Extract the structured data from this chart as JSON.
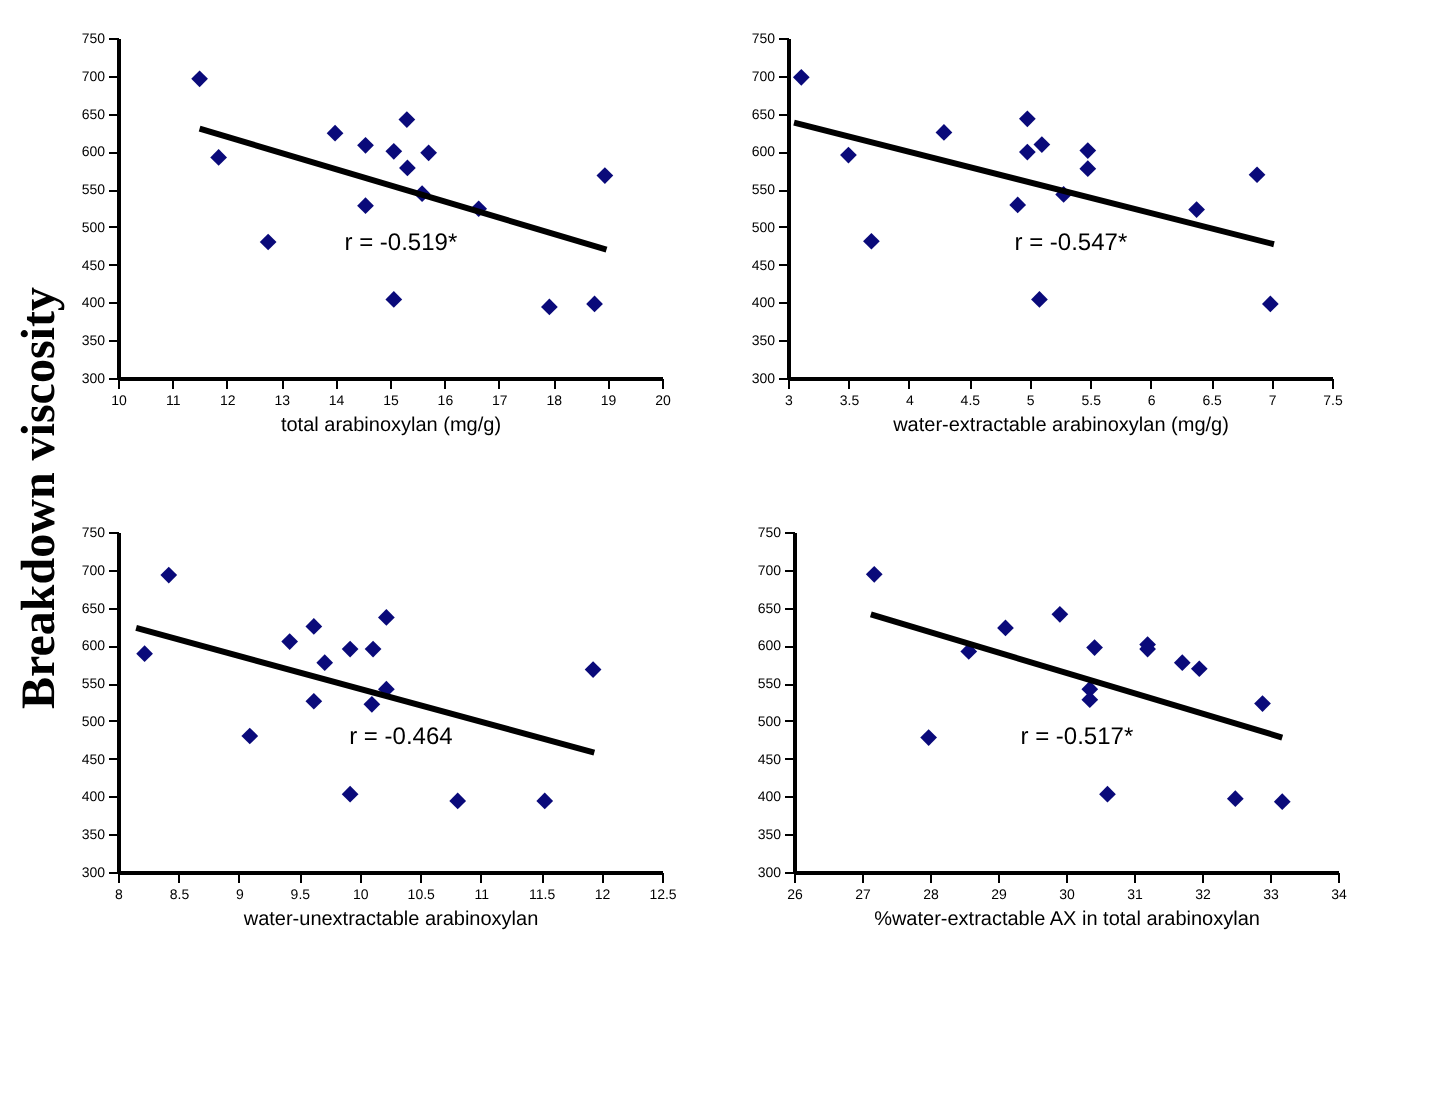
{
  "chart_data": [
    {
      "type": "scatter",
      "ylabel": "Breakdown viscosity",
      "xlabel": "total arabinoxylan (mg/g)",
      "xlim": [
        10,
        20
      ],
      "xticks": [
        10,
        11,
        12,
        13,
        14,
        15,
        16,
        17,
        18,
        19,
        20
      ],
      "ylim": [
        300,
        750
      ],
      "yticks": [
        300,
        350,
        400,
        450,
        500,
        550,
        600,
        650,
        700,
        750
      ],
      "annotations": [
        "r = -0.519*"
      ],
      "series": [
        {
          "marker": "diamond",
          "color": "#0a0a7a",
          "x": [
            11.5,
            11.85,
            12.76,
            13.99,
            14.55,
            14.55,
            15.07,
            15.31,
            15.32,
            15.59,
            15.71,
            15.07,
            16.63,
            17.93,
            18.76,
            18.95
          ],
          "values": [
            696,
            592,
            480,
            624,
            608,
            528,
            600,
            642,
            578,
            544,
            598,
            404,
            524,
            394,
            398,
            568
          ]
        },
        {
          "type": "line",
          "color": "#000000",
          "x": [
            11.5,
            18.98
          ],
          "values": [
            630,
            470
          ]
        }
      ]
    },
    {
      "type": "scatter",
      "xlabel": "water-extractable arabinoxylan (mg/g)",
      "xlim": [
        3,
        7.5
      ],
      "xticks": [
        3,
        3.5,
        4,
        4.5,
        5,
        5.5,
        6,
        6.5,
        7,
        7.5
      ],
      "ylim": [
        300,
        750
      ],
      "yticks": [
        300,
        350,
        400,
        450,
        500,
        550,
        600,
        650,
        700,
        750
      ],
      "annotations": [
        "r = -0.547*"
      ],
      "series": [
        {
          "marker": "diamond",
          "color": "#0a0a7a",
          "x": [
            3.11,
            3.5,
            3.69,
            4.29,
            4.9,
            4.98,
            4.98,
            5.1,
            5.08,
            5.28,
            5.48,
            5.48,
            6.38,
            6.88,
            6.99
          ],
          "values": [
            698,
            595,
            481,
            625,
            529,
            643,
            599,
            609,
            404,
            543,
            601,
            577,
            523,
            569,
            398
          ]
        },
        {
          "type": "line",
          "color": "#000000",
          "x": [
            3.05,
            7.02
          ],
          "values": [
            638,
            477
          ]
        }
      ]
    },
    {
      "type": "scatter",
      "xlabel": "water-unextractable arabinoxylan",
      "xlim": [
        8,
        12.5
      ],
      "xticks": [
        8,
        8.5,
        9,
        9.5,
        10,
        10.5,
        11,
        11.5,
        12,
        12.5
      ],
      "ylim": [
        300,
        750
      ],
      "yticks": [
        300,
        350,
        400,
        450,
        500,
        550,
        600,
        650,
        700,
        750
      ],
      "annotations": [
        "r = -0.464"
      ],
      "series": [
        {
          "marker": "diamond",
          "color": "#0a0a7a",
          "x": [
            8.22,
            8.42,
            9.42,
            9.62,
            9.71,
            9.62,
            9.92,
            9.92,
            10.11,
            10.1,
            10.22,
            10.22,
            9.09,
            10.81,
            11.53,
            11.93
          ],
          "values": [
            589,
            693,
            605,
            625,
            577,
            526,
            595,
            403,
            595,
            522,
            637,
            542,
            480,
            394,
            394,
            568
          ]
        },
        {
          "type": "line",
          "color": "#000000",
          "x": [
            8.15,
            11.94
          ],
          "values": [
            623,
            458
          ]
        }
      ]
    },
    {
      "type": "scatter",
      "xlabel": "%water-extractable AX in total arabinoxylan",
      "xlim": [
        26,
        34
      ],
      "xticks": [
        26,
        27,
        28,
        29,
        30,
        31,
        32,
        33,
        34
      ],
      "ylim": [
        300,
        750
      ],
      "yticks": [
        300,
        350,
        400,
        450,
        500,
        550,
        600,
        650,
        700,
        750
      ],
      "annotations": [
        "r = -0.517*"
      ],
      "series": [
        {
          "marker": "diamond",
          "color": "#0a0a7a",
          "x": [
            27.18,
            28.57,
            29.11,
            29.91,
            27.98,
            30.42,
            30.35,
            30.35,
            30.61,
            31.2,
            31.2,
            31.71,
            31.96,
            32.49,
            32.89,
            33.18
          ],
          "values": [
            694,
            592,
            623,
            641,
            478,
            597,
            542,
            528,
            403,
            601,
            595,
            577,
            569,
            397,
            523,
            393
          ]
        },
        {
          "type": "line",
          "color": "#000000",
          "x": [
            27.13,
            33.18
          ],
          "values": [
            641,
            478
          ]
        }
      ]
    }
  ]
}
